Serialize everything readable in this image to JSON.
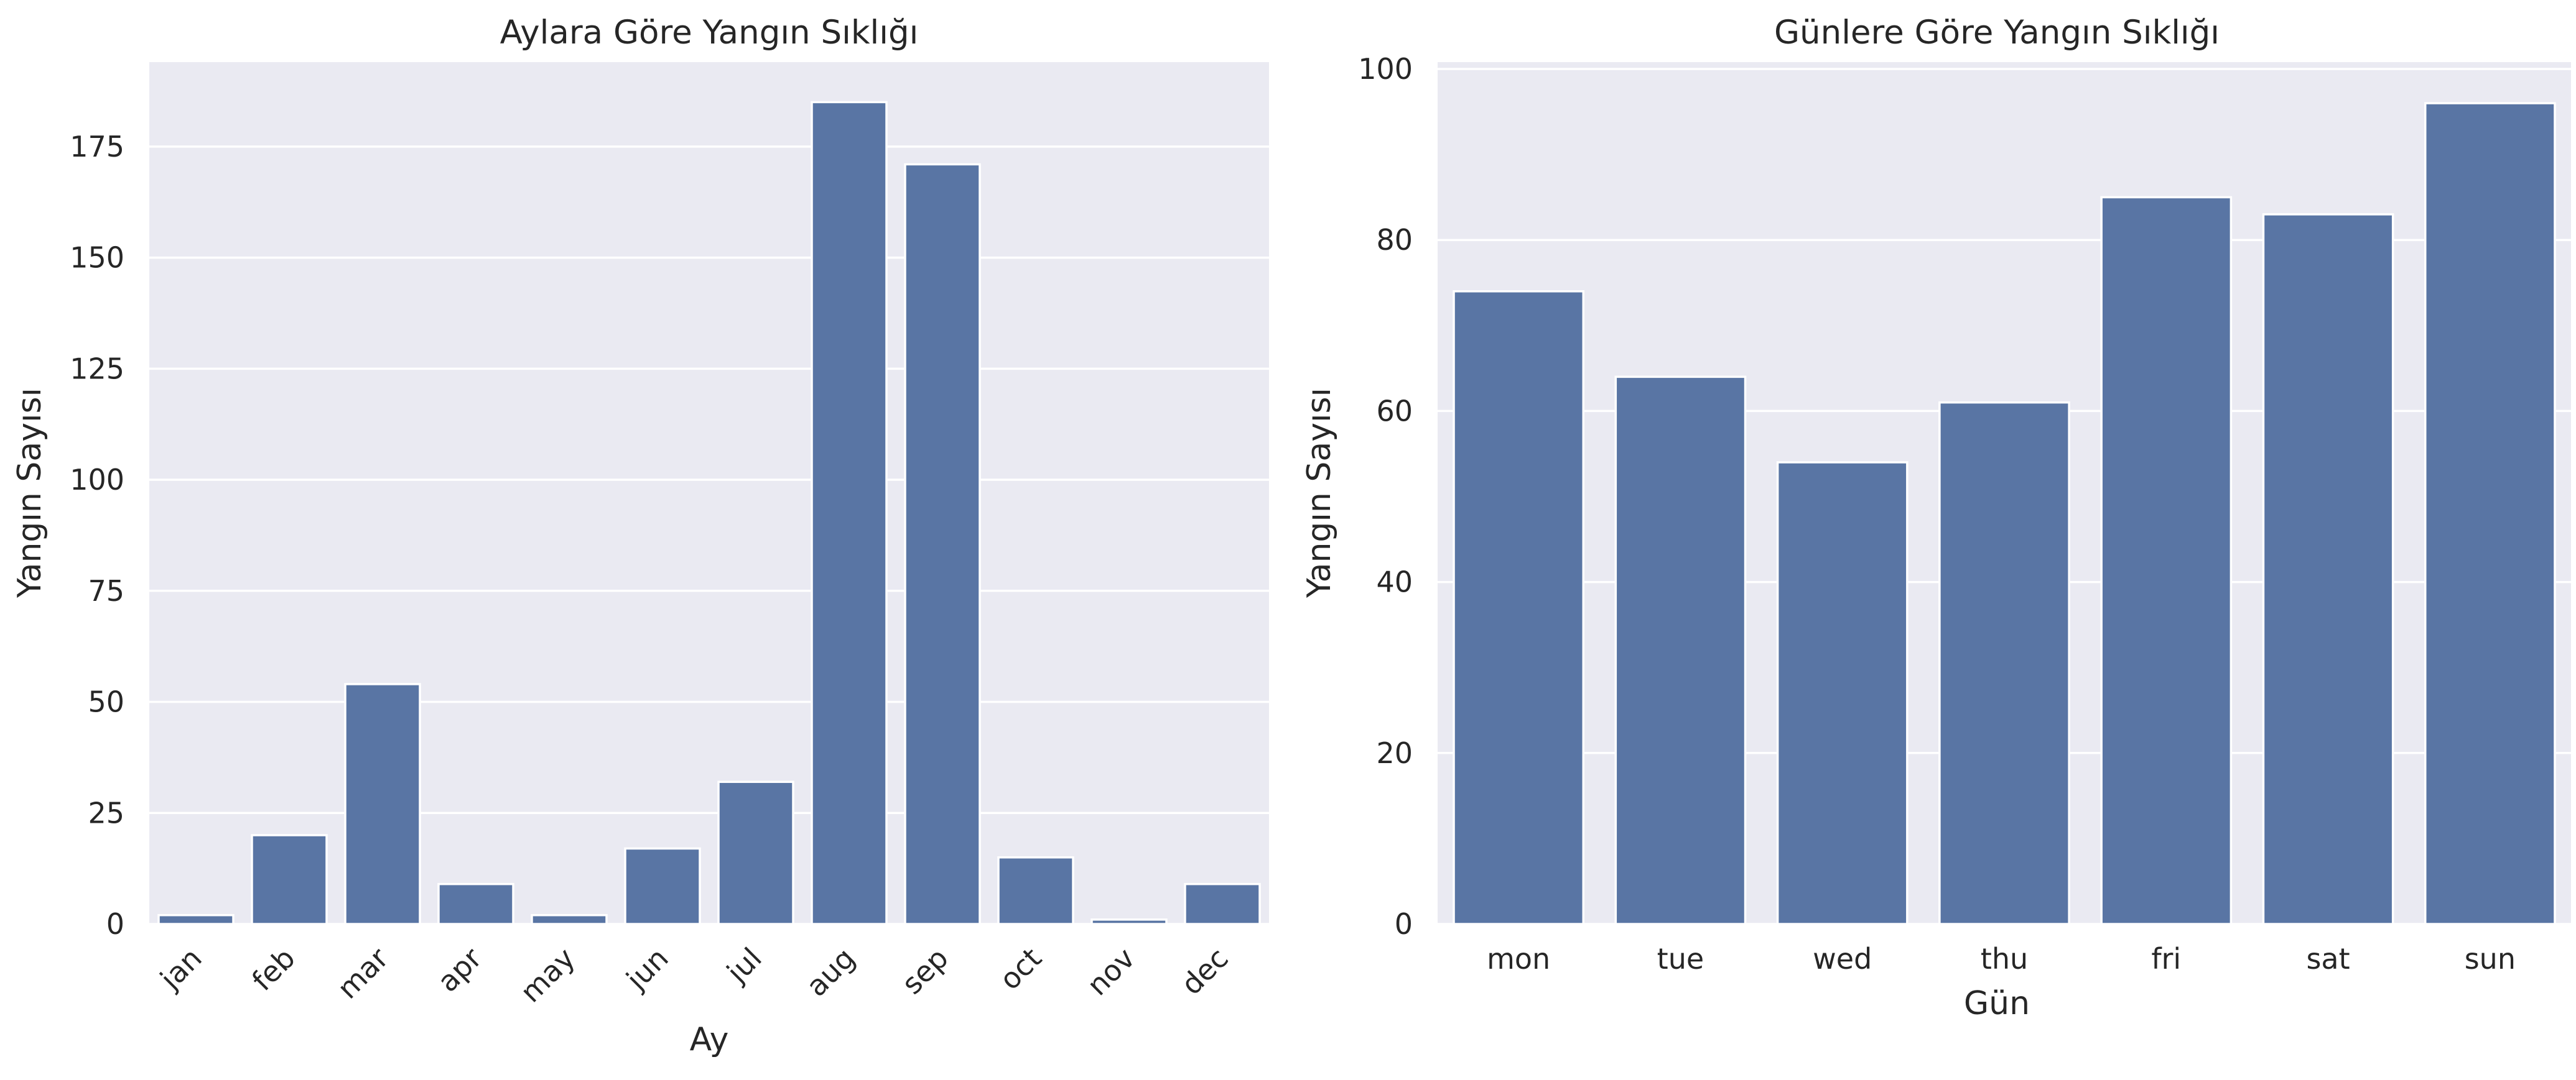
{
  "chart_data": [
    {
      "type": "bar",
      "title": "Aylara Göre Yangın Sıklığı",
      "xlabel": "Ay",
      "ylabel": "Yangın Sayısı",
      "categories": [
        "jan",
        "feb",
        "mar",
        "apr",
        "may",
        "jun",
        "jul",
        "aug",
        "sep",
        "oct",
        "nov",
        "dec"
      ],
      "values": [
        2,
        20,
        54,
        9,
        2,
        17,
        32,
        185,
        171,
        15,
        1,
        9
      ],
      "ylim": [
        0,
        194
      ],
      "yticks": [
        0,
        25,
        50,
        75,
        100,
        125,
        150,
        175
      ],
      "grid": true,
      "bar_color": "#5975a4",
      "background_color": "#eaeaf2"
    },
    {
      "type": "bar",
      "title": "Günlere Göre Yangın Sıklığı",
      "xlabel": "Gün",
      "ylabel": "Yangın Sayısı",
      "categories": [
        "mon",
        "tue",
        "wed",
        "thu",
        "fri",
        "sat",
        "sun"
      ],
      "values": [
        74,
        64,
        54,
        61,
        85,
        83,
        96
      ],
      "ylim": [
        0,
        100.8
      ],
      "yticks": [
        0,
        20,
        40,
        60,
        80,
        100
      ],
      "grid": true,
      "bar_color": "#5975a4",
      "background_color": "#eaeaf2"
    }
  ]
}
